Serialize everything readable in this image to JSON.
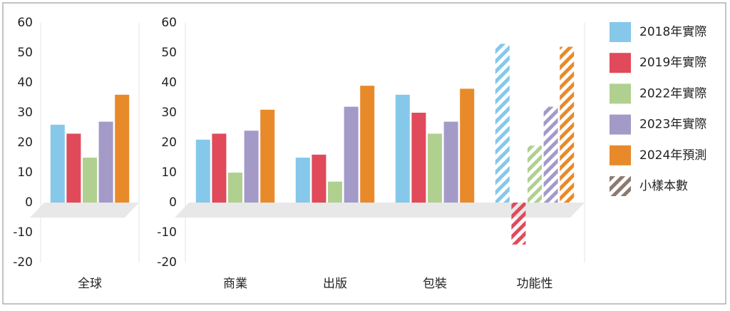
{
  "chart_data": [
    {
      "type": "bar",
      "categories": [
        "全球"
      ],
      "series": [
        {
          "color": "#85c8ea",
          "values": [
            26
          ]
        },
        {
          "color": "#e04a5a",
          "values": [
            23
          ]
        },
        {
          "color": "#b0d090",
          "values": [
            15
          ]
        },
        {
          "color": "#a49ac8",
          "values": [
            27
          ]
        },
        {
          "color": "#e88a2a",
          "values": [
            36
          ]
        }
      ],
      "ylim": [
        -20,
        60
      ],
      "yticks": [
        -20,
        -10,
        0,
        10,
        20,
        30,
        40,
        50,
        60
      ]
    },
    {
      "type": "bar",
      "categories": [
        "商業",
        "出版",
        "包裝",
        "功能性"
      ],
      "hatched": [
        false,
        false,
        false,
        true
      ],
      "series": [
        {
          "name": "2018年實際",
          "color": "#85c8ea",
          "values": [
            21,
            15,
            36,
            53
          ]
        },
        {
          "name": "2019年實際",
          "color": "#e04a5a",
          "values": [
            23,
            16,
            30,
            -14
          ]
        },
        {
          "name": "2022年實際",
          "color": "#b0d090",
          "values": [
            10,
            7,
            23,
            19
          ]
        },
        {
          "name": "2023年實際",
          "color": "#a49ac8",
          "values": [
            24,
            32,
            27,
            32
          ]
        },
        {
          "name": "2024年預測",
          "color": "#e88a2a",
          "values": [
            31,
            39,
            38,
            52
          ]
        }
      ],
      "hatch_legend": {
        "label": "小樣本數",
        "color": "#8a7a70"
      },
      "ylim": [
        -20,
        60
      ],
      "yticks": [
        -20,
        -10,
        0,
        10,
        20,
        30,
        40,
        50,
        60
      ]
    }
  ]
}
